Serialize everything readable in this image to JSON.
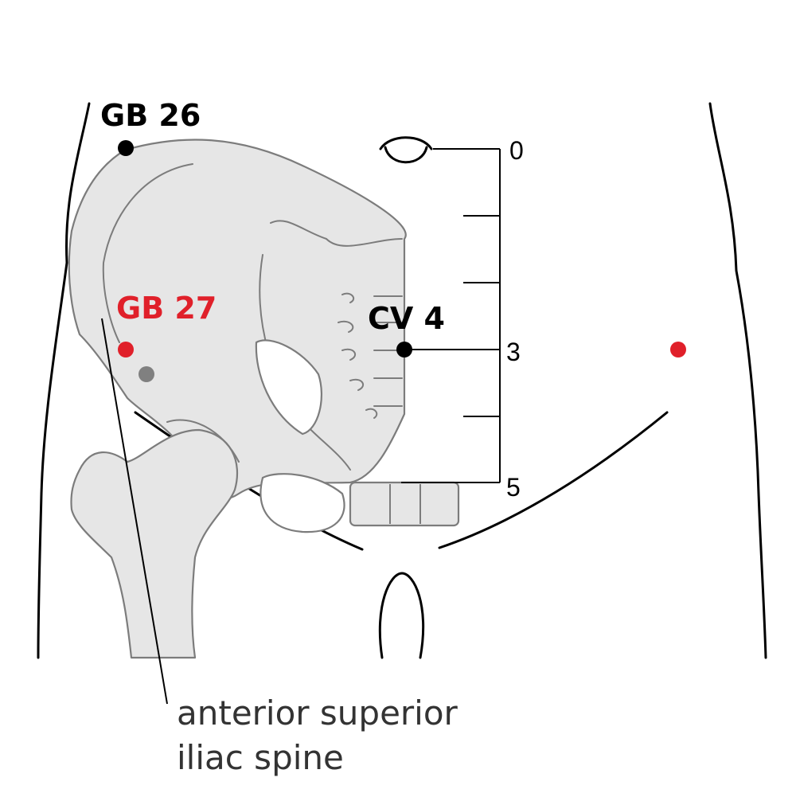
{
  "points": {
    "gb26": {
      "label": "GB 26"
    },
    "gb27": {
      "label": "GB 27"
    },
    "cv4": {
      "label": "CV 4"
    }
  },
  "scale": {
    "ticks": [
      "0",
      "3",
      "5"
    ]
  },
  "annotation": {
    "line1": "anterior superior",
    "line2": "iliac spine"
  },
  "colors": {
    "highlight": "#e0202a",
    "point": "#000000",
    "bone_fill": "#e6e6e6",
    "bone_outline": "#7c7c7c",
    "secondary_point": "#808080"
  }
}
